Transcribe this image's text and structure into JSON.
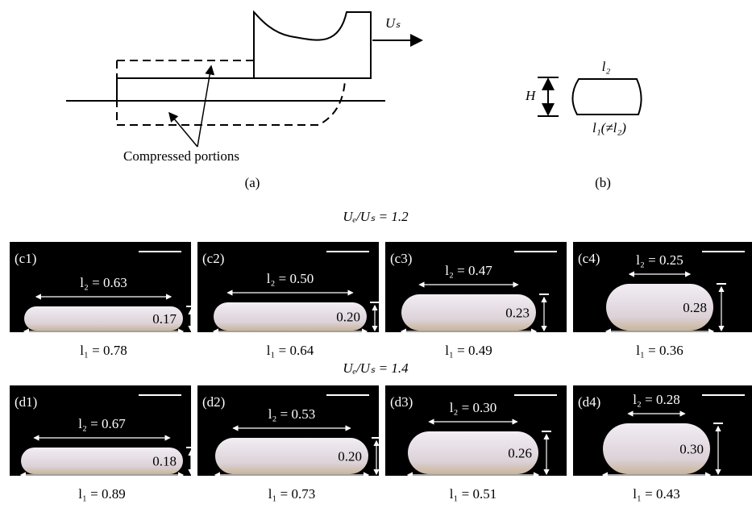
{
  "diagram_a": {
    "velocity": "Uₛ",
    "note": "Compressed portions",
    "caption": "(a)"
  },
  "diagram_b": {
    "height": "H",
    "top": "l₂",
    "bottom": "l₁(≠l₂)",
    "caption": "(b)"
  },
  "rows": [
    {
      "title": "Uₑ/Uₛ = 1.2",
      "panels": [
        {
          "tag": "(c1)",
          "l2": "l₂ = 0.63",
          "h": "0.17",
          "l1": "l₁ = 0.78"
        },
        {
          "tag": "(c2)",
          "l2": "l₂ = 0.50",
          "h": "0.20",
          "l1": "l₁ = 0.64"
        },
        {
          "tag": "(c3)",
          "l2": "l₂ = 0.47",
          "h": "0.23",
          "l1": "l₁ = 0.49"
        },
        {
          "tag": "(c4)",
          "l2": "l₂ = 0.25",
          "h": "0.28",
          "l1": "l₁ = 0.36"
        }
      ]
    },
    {
      "title": "Uₑ/Uₛ = 1.4",
      "panels": [
        {
          "tag": "(d1)",
          "l2": "l₂ = 0.67",
          "h": "0.18",
          "l1": "l₁ = 0.89"
        },
        {
          "tag": "(d2)",
          "l2": "l₂ = 0.53",
          "h": "0.20",
          "l1": "l₁ = 0.73"
        },
        {
          "tag": "(d3)",
          "l2": "l₂ = 0.30",
          "h": "0.26",
          "l1": "l₁ = 0.51"
        },
        {
          "tag": "(d4)",
          "l2": "l₂ = 0.28",
          "h": "0.30",
          "l1": "l₁ = 0.43"
        }
      ]
    }
  ]
}
